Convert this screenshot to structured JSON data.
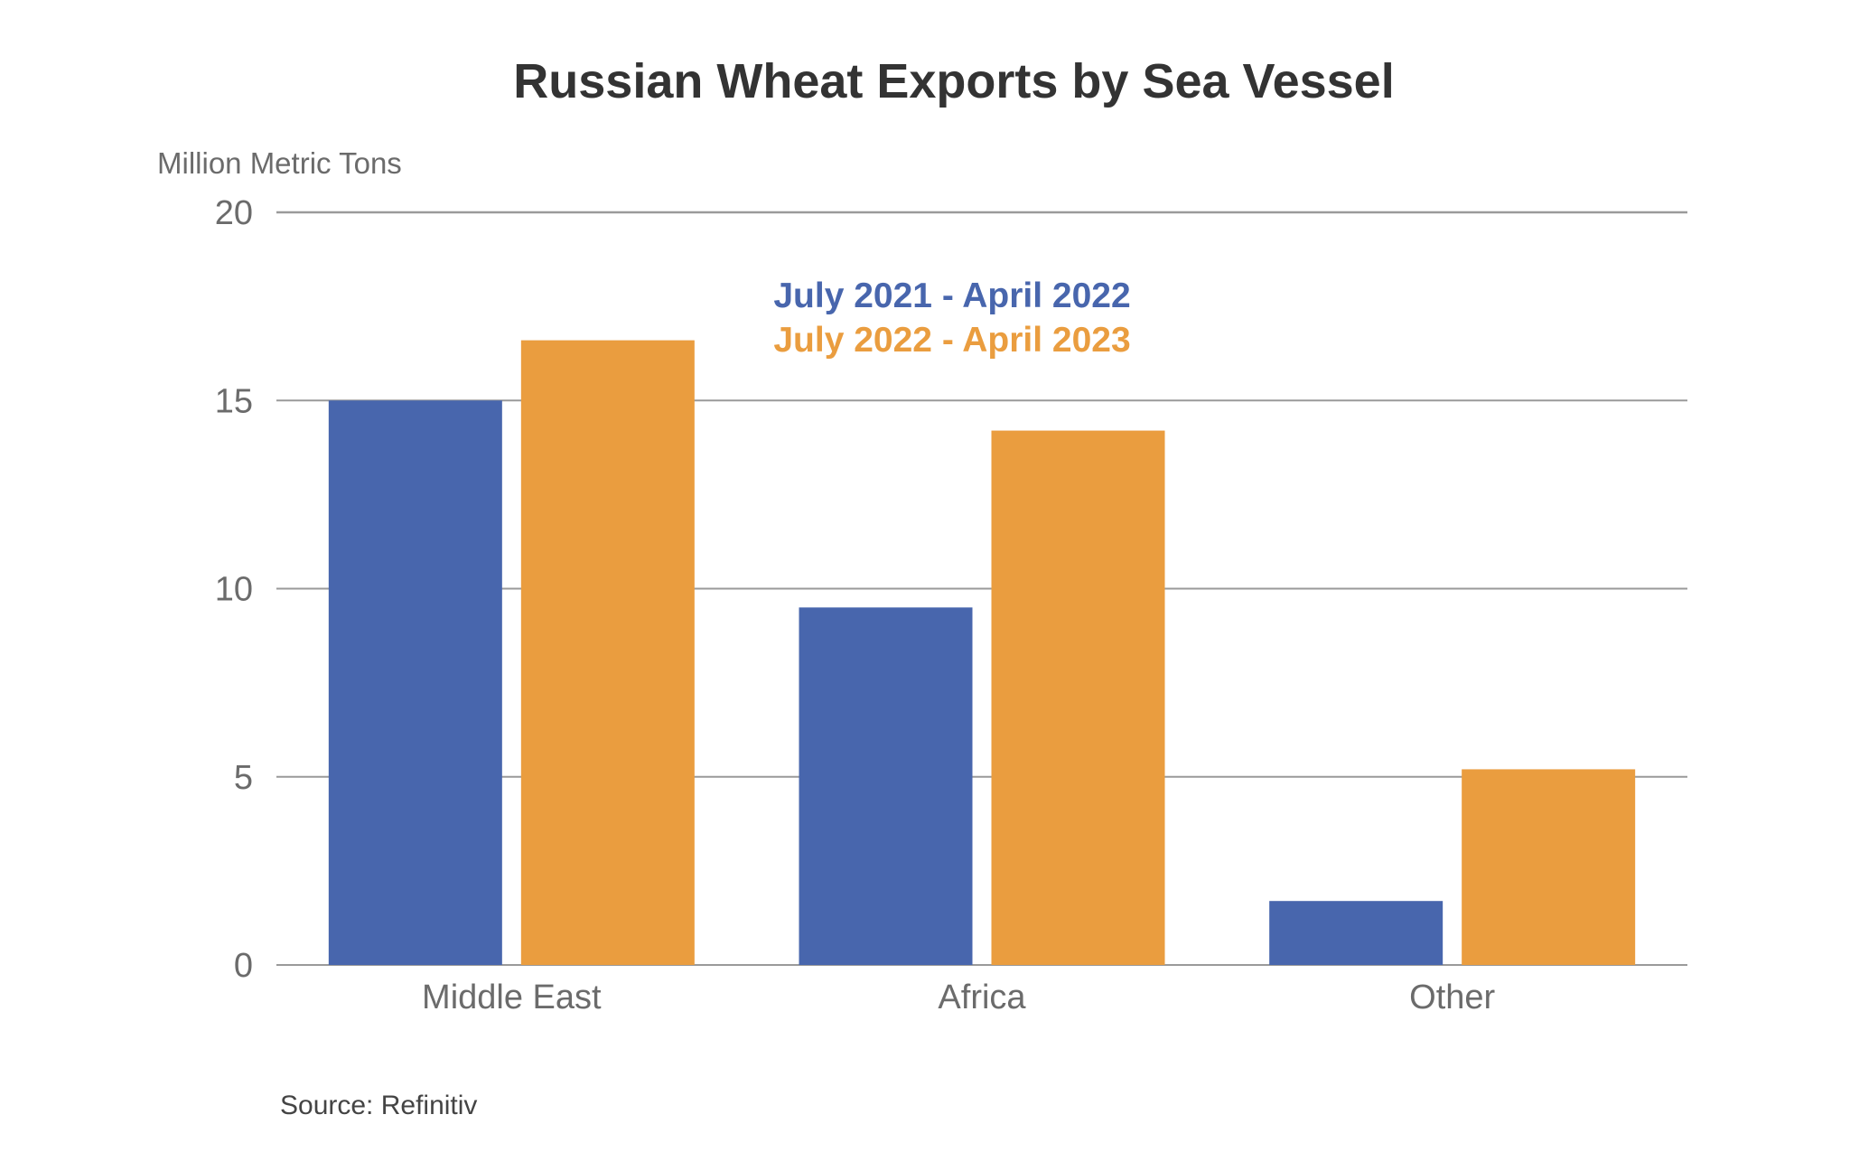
{
  "chart_data": {
    "type": "bar",
    "title": "Russian Wheat Exports by Sea Vessel",
    "ylabel": "Million Metric Tons",
    "xlabel": "",
    "categories": [
      "Middle East",
      "Africa",
      "Other"
    ],
    "series": [
      {
        "name": "July 2021 - April 2022",
        "color": "#4866ad",
        "values": [
          15.0,
          9.5,
          1.7
        ]
      },
      {
        "name": "July 2022 - April 2023",
        "color": "#ea9d3f",
        "values": [
          16.6,
          14.2,
          5.2
        ]
      }
    ],
    "ylim": [
      0,
      20
    ],
    "yticks": [
      "0",
      "5",
      "10",
      "15",
      "20"
    ],
    "grid": true,
    "legend": "top-center",
    "source": "Source: Refinitiv"
  },
  "colors": {
    "title": "#333333",
    "axis_text": "#6b6b6b",
    "gridline": "#9a9a9a",
    "axis_line": "#9a9a9a"
  }
}
